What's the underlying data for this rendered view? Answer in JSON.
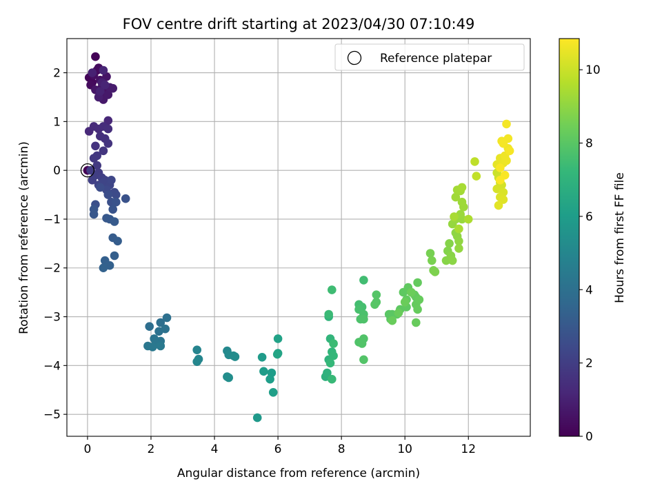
{
  "chart_data": {
    "type": "scatter",
    "title": "FOV centre drift starting at 2023/04/30 07:10:49",
    "xlabel": "Angular distance from reference (arcmin)",
    "ylabel": "Rotation from reference (arcmin)",
    "xlim": [
      -0.65,
      13.95
    ],
    "ylim": [
      -5.45,
      2.7
    ],
    "xticks": [
      0,
      2,
      4,
      6,
      8,
      10,
      12
    ],
    "yticks": [
      -5,
      -4,
      -3,
      -2,
      -1,
      0,
      1,
      2
    ],
    "grid": true,
    "legend": {
      "position": "top-right",
      "entries": [
        "Reference platepar"
      ]
    },
    "reference_point": {
      "x": 0,
      "y": 0
    },
    "colorbar": {
      "label": "Hours from first FF file",
      "range": [
        0,
        10.85
      ],
      "ticks": [
        0,
        2,
        4,
        6,
        8,
        10
      ],
      "colormap": "viridis"
    },
    "points": [
      [
        0.0,
        0.0,
        0.0
      ],
      [
        0.25,
        2.33,
        0.1
      ],
      [
        0.05,
        1.9,
        0.15
      ],
      [
        0.15,
        1.8,
        0.2
      ],
      [
        0.3,
        2.05,
        0.25
      ],
      [
        0.1,
        1.75,
        0.3
      ],
      [
        0.35,
        2.1,
        0.35
      ],
      [
        0.2,
        1.95,
        0.4
      ],
      [
        0.4,
        1.85,
        0.45
      ],
      [
        0.45,
        1.7,
        0.5
      ],
      [
        0.55,
        1.6,
        0.55
      ],
      [
        0.6,
        1.92,
        0.6
      ],
      [
        0.25,
        1.65,
        0.65
      ],
      [
        0.5,
        1.45,
        0.7
      ],
      [
        0.65,
        1.55,
        0.75
      ],
      [
        0.7,
        1.7,
        0.8
      ],
      [
        0.8,
        1.68,
        0.85
      ],
      [
        0.35,
        1.5,
        0.9
      ],
      [
        0.45,
        1.8,
        0.95
      ],
      [
        0.15,
        2.0,
        1.0
      ],
      [
        0.4,
        1.62,
        1.05
      ],
      [
        0.55,
        1.75,
        1.1
      ],
      [
        0.5,
        2.05,
        1.15
      ],
      [
        0.65,
        1.02,
        1.2
      ],
      [
        0.05,
        0.8,
        1.25
      ],
      [
        0.2,
        0.9,
        1.3
      ],
      [
        0.35,
        0.85,
        1.35
      ],
      [
        0.5,
        0.9,
        1.4
      ],
      [
        0.65,
        0.85,
        1.45
      ],
      [
        0.4,
        0.7,
        1.5
      ],
      [
        0.55,
        0.65,
        1.55
      ],
      [
        0.25,
        0.5,
        1.6
      ],
      [
        0.65,
        0.55,
        1.65
      ],
      [
        0.5,
        0.4,
        1.7
      ],
      [
        0.3,
        0.3,
        1.75
      ],
      [
        0.2,
        0.25,
        1.8
      ],
      [
        0.3,
        0.1,
        1.85
      ],
      [
        0.1,
        0.0,
        1.9
      ],
      [
        0.35,
        -0.05,
        1.95
      ],
      [
        0.25,
        -0.1,
        2.0
      ],
      [
        0.45,
        -0.15,
        2.05
      ],
      [
        0.15,
        -0.2,
        2.1
      ],
      [
        0.55,
        -0.2,
        2.15
      ],
      [
        0.35,
        -0.3,
        2.2
      ],
      [
        0.5,
        -0.25,
        2.25
      ],
      [
        0.7,
        -0.3,
        2.3
      ],
      [
        0.75,
        -0.2,
        2.35
      ],
      [
        0.6,
        -0.4,
        2.4
      ],
      [
        0.85,
        -0.45,
        2.45
      ],
      [
        0.9,
        -0.5,
        2.5
      ],
      [
        0.4,
        -0.35,
        2.55
      ],
      [
        0.65,
        -0.5,
        2.6
      ],
      [
        0.25,
        -0.7,
        2.65
      ],
      [
        0.75,
        -0.65,
        2.7
      ],
      [
        1.2,
        -0.58,
        2.75
      ],
      [
        0.9,
        -0.65,
        2.8
      ],
      [
        0.8,
        -0.8,
        2.85
      ],
      [
        0.2,
        -0.8,
        2.9
      ],
      [
        0.2,
        -0.9,
        2.95
      ],
      [
        0.6,
        -0.98,
        3.0
      ],
      [
        0.7,
        -1.0,
        3.05
      ],
      [
        0.85,
        -1.05,
        3.1
      ],
      [
        0.8,
        -1.38,
        3.15
      ],
      [
        0.95,
        -1.45,
        3.2
      ],
      [
        0.85,
        -1.75,
        3.25
      ],
      [
        0.55,
        -1.85,
        3.3
      ],
      [
        0.7,
        -1.95,
        3.35
      ],
      [
        0.5,
        -2.0,
        3.4
      ],
      [
        1.95,
        -3.2,
        3.9
      ],
      [
        2.3,
        -3.12,
        3.95
      ],
      [
        2.5,
        -3.02,
        4.0
      ],
      [
        2.25,
        -3.3,
        4.05
      ],
      [
        2.45,
        -3.25,
        4.1
      ],
      [
        2.1,
        -3.45,
        4.15
      ],
      [
        2.3,
        -3.5,
        4.2
      ],
      [
        2.15,
        -3.55,
        4.25
      ],
      [
        1.9,
        -3.6,
        4.3
      ],
      [
        2.05,
        -3.62,
        4.35
      ],
      [
        2.3,
        -3.6,
        4.4
      ],
      [
        3.45,
        -3.68,
        4.9
      ],
      [
        3.5,
        -3.87,
        4.95
      ],
      [
        3.45,
        -3.92,
        5.0
      ],
      [
        4.4,
        -3.7,
        5.1
      ],
      [
        4.45,
        -3.78,
        5.15
      ],
      [
        4.6,
        -3.8,
        5.2
      ],
      [
        4.65,
        -3.82,
        5.25
      ],
      [
        4.4,
        -4.23,
        5.3
      ],
      [
        4.45,
        -4.25,
        5.35
      ],
      [
        5.35,
        -5.07,
        5.8
      ],
      [
        5.5,
        -3.83,
        5.9
      ],
      [
        5.55,
        -4.12,
        5.95
      ],
      [
        5.8,
        -4.15,
        6.0
      ],
      [
        5.75,
        -4.28,
        6.05
      ],
      [
        5.85,
        -4.55,
        6.1
      ],
      [
        6.0,
        -3.45,
        6.2
      ],
      [
        6.0,
        -3.75,
        6.25
      ],
      [
        5.98,
        -3.77,
        6.3
      ],
      [
        7.5,
        -4.23,
        6.9
      ],
      [
        7.55,
        -4.15,
        6.95
      ],
      [
        7.6,
        -3.88,
        7.0
      ],
      [
        7.6,
        -3.0,
        7.05
      ],
      [
        7.65,
        -3.45,
        7.1
      ],
      [
        7.7,
        -3.72,
        7.15
      ],
      [
        7.75,
        -3.8,
        7.2
      ],
      [
        7.65,
        -3.95,
        7.25
      ],
      [
        7.7,
        -4.28,
        7.3
      ],
      [
        7.6,
        -2.95,
        7.35
      ],
      [
        7.75,
        -3.55,
        7.4
      ],
      [
        7.7,
        -2.45,
        7.45
      ],
      [
        8.7,
        -2.25,
        7.5
      ],
      [
        8.55,
        -2.75,
        7.55
      ],
      [
        8.65,
        -2.8,
        7.6
      ],
      [
        8.55,
        -2.85,
        7.65
      ],
      [
        8.7,
        -2.95,
        7.7
      ],
      [
        8.6,
        -3.05,
        7.75
      ],
      [
        8.7,
        -3.05,
        7.78
      ],
      [
        8.55,
        -3.52,
        7.8
      ],
      [
        8.7,
        -3.45,
        7.82
      ],
      [
        8.65,
        -3.55,
        7.84
      ],
      [
        8.7,
        -3.88,
        7.86
      ],
      [
        9.1,
        -2.55,
        7.9
      ],
      [
        9.1,
        -2.7,
        7.93
      ],
      [
        9.05,
        -2.75,
        7.96
      ],
      [
        9.5,
        -2.95,
        8.0
      ],
      [
        9.55,
        -3.05,
        8.02
      ],
      [
        9.6,
        -2.95,
        8.04
      ],
      [
        9.75,
        -2.95,
        8.06
      ],
      [
        9.85,
        -2.85,
        8.08
      ],
      [
        9.95,
        -2.5,
        8.1
      ],
      [
        10.05,
        -2.8,
        8.12
      ],
      [
        10.1,
        -2.4,
        8.14
      ],
      [
        10.05,
        -2.65,
        8.16
      ],
      [
        10.3,
        -2.55,
        8.18
      ],
      [
        10.35,
        -2.6,
        8.2
      ],
      [
        10.4,
        -2.3,
        8.22
      ],
      [
        10.35,
        -2.75,
        8.24
      ],
      [
        10.4,
        -2.85,
        8.26
      ],
      [
        10.45,
        -2.65,
        8.28
      ],
      [
        10.35,
        -3.12,
        8.3
      ],
      [
        9.6,
        -3.08,
        8.32
      ],
      [
        9.8,
        -2.92,
        8.34
      ],
      [
        10.0,
        -2.7,
        8.36
      ],
      [
        10.2,
        -2.5,
        8.38
      ],
      [
        10.8,
        -1.7,
        8.6
      ],
      [
        10.85,
        -1.85,
        8.63
      ],
      [
        10.9,
        -2.05,
        8.66
      ],
      [
        10.95,
        -2.08,
        8.7
      ],
      [
        11.35,
        -1.65,
        8.8
      ],
      [
        11.4,
        -1.5,
        8.83
      ],
      [
        11.3,
        -1.85,
        8.86
      ],
      [
        11.45,
        -1.75,
        8.9
      ],
      [
        11.5,
        -1.85,
        8.93
      ],
      [
        11.6,
        -1.28,
        8.96
      ],
      [
        11.65,
        -1.35,
        9.0
      ],
      [
        11.7,
        -1.45,
        9.03
      ],
      [
        11.7,
        -1.6,
        9.06
      ],
      [
        11.5,
        -1.1,
        9.1
      ],
      [
        11.6,
        -1.0,
        9.13
      ],
      [
        11.8,
        -1.0,
        9.16
      ],
      [
        11.75,
        -0.9,
        9.2
      ],
      [
        11.85,
        -0.75,
        9.23
      ],
      [
        11.8,
        -0.65,
        9.26
      ],
      [
        11.6,
        -0.55,
        9.3
      ],
      [
        11.75,
        -0.42,
        9.33
      ],
      [
        11.65,
        -0.4,
        9.36
      ],
      [
        11.8,
        -0.35,
        9.4
      ],
      [
        11.55,
        -0.95,
        9.43
      ],
      [
        11.7,
        -1.2,
        9.46
      ],
      [
        12.0,
        -1.0,
        9.5
      ],
      [
        12.2,
        0.18,
        9.8
      ],
      [
        12.25,
        -0.12,
        9.85
      ],
      [
        12.9,
        -0.05,
        10.0
      ],
      [
        12.95,
        -0.15,
        10.05
      ],
      [
        13.0,
        -0.25,
        10.1
      ],
      [
        13.05,
        -0.3,
        10.15
      ],
      [
        12.9,
        -0.38,
        10.2
      ],
      [
        13.1,
        -0.45,
        10.25
      ],
      [
        13.0,
        -0.55,
        10.3
      ],
      [
        13.1,
        -0.6,
        10.35
      ],
      [
        12.95,
        -0.72,
        10.4
      ],
      [
        12.9,
        0.12,
        10.45
      ],
      [
        13.0,
        0.25,
        10.5
      ],
      [
        13.1,
        0.15,
        10.55
      ],
      [
        13.2,
        0.2,
        10.6
      ],
      [
        13.15,
        0.3,
        10.62
      ],
      [
        13.25,
        0.45,
        10.64
      ],
      [
        13.05,
        0.6,
        10.66
      ],
      [
        13.25,
        0.65,
        10.68
      ],
      [
        13.2,
        0.95,
        10.7
      ],
      [
        13.1,
        0.55,
        10.72
      ],
      [
        13.3,
        0.4,
        10.74
      ],
      [
        13.0,
        0.05,
        10.76
      ],
      [
        13.15,
        -0.1,
        10.78
      ],
      [
        13.0,
        -0.2,
        10.8
      ]
    ]
  }
}
